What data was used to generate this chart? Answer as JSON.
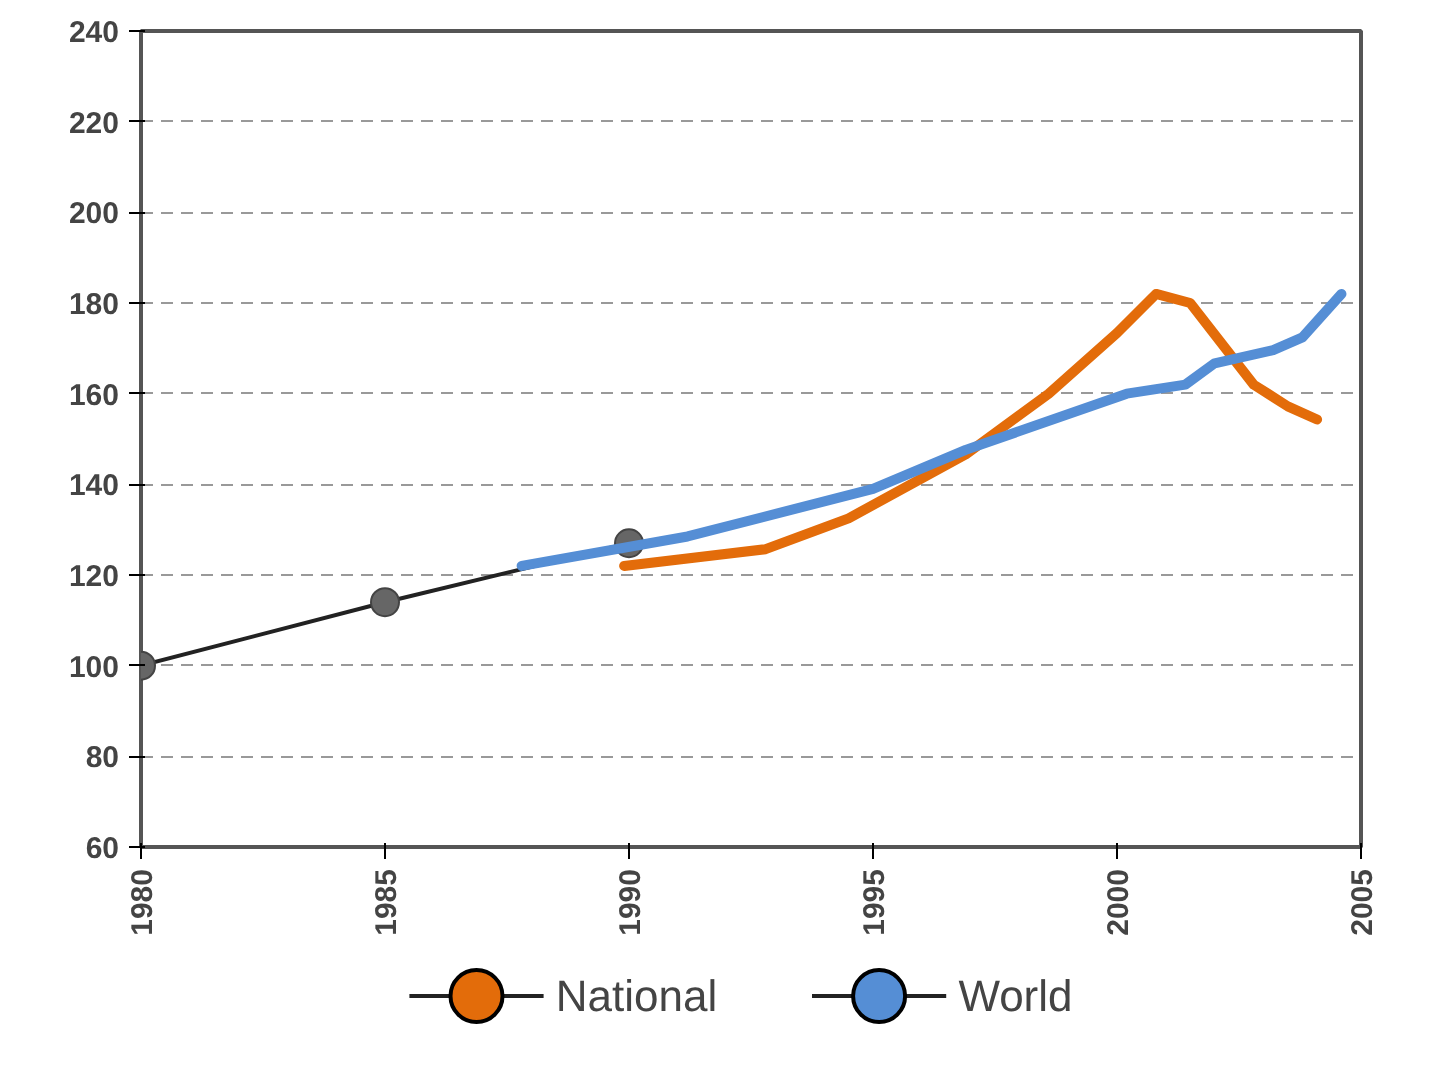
{
  "chart_data": {
    "type": "line",
    "xlim": [
      1980,
      2005
    ],
    "ylim": [
      60,
      240
    ],
    "xticks": [
      1980,
      1985,
      1990,
      1995,
      2000,
      2005
    ],
    "yticks": [
      60,
      80,
      100,
      120,
      140,
      160,
      180,
      200,
      220,
      240
    ],
    "grid": "y",
    "legend": "bottom",
    "line_style": "solid",
    "series": [
      {
        "color": "#222222",
        "marker": "circle",
        "x": [
          1980,
          1985,
          1990
        ],
        "values": [
          100,
          114,
          127
        ]
      },
      {
        "name": "National",
        "color": "#e36c0a",
        "marker": "none",
        "x": [
          1989.9,
          1992.8,
          1994.5,
          1996.9,
          1998.6,
          2000.0,
          2000.8,
          2001.5,
          2002.8,
          2003.5,
          2004.1
        ],
        "values": [
          122,
          125.7,
          132.5,
          146.6,
          160,
          173.4,
          182,
          180,
          162,
          157.2,
          154.3
        ]
      },
      {
        "name": "World",
        "color": "#558ed5",
        "marker": "none",
        "x": [
          1987.8,
          1991.2,
          1995.0,
          1996.9,
          2000.2,
          2001.4,
          2002.0,
          2003.2,
          2003.8,
          2004.6
        ],
        "values": [
          122,
          128.5,
          139,
          147.6,
          160,
          162,
          166.7,
          169.6,
          172.4,
          182
        ]
      }
    ]
  }
}
